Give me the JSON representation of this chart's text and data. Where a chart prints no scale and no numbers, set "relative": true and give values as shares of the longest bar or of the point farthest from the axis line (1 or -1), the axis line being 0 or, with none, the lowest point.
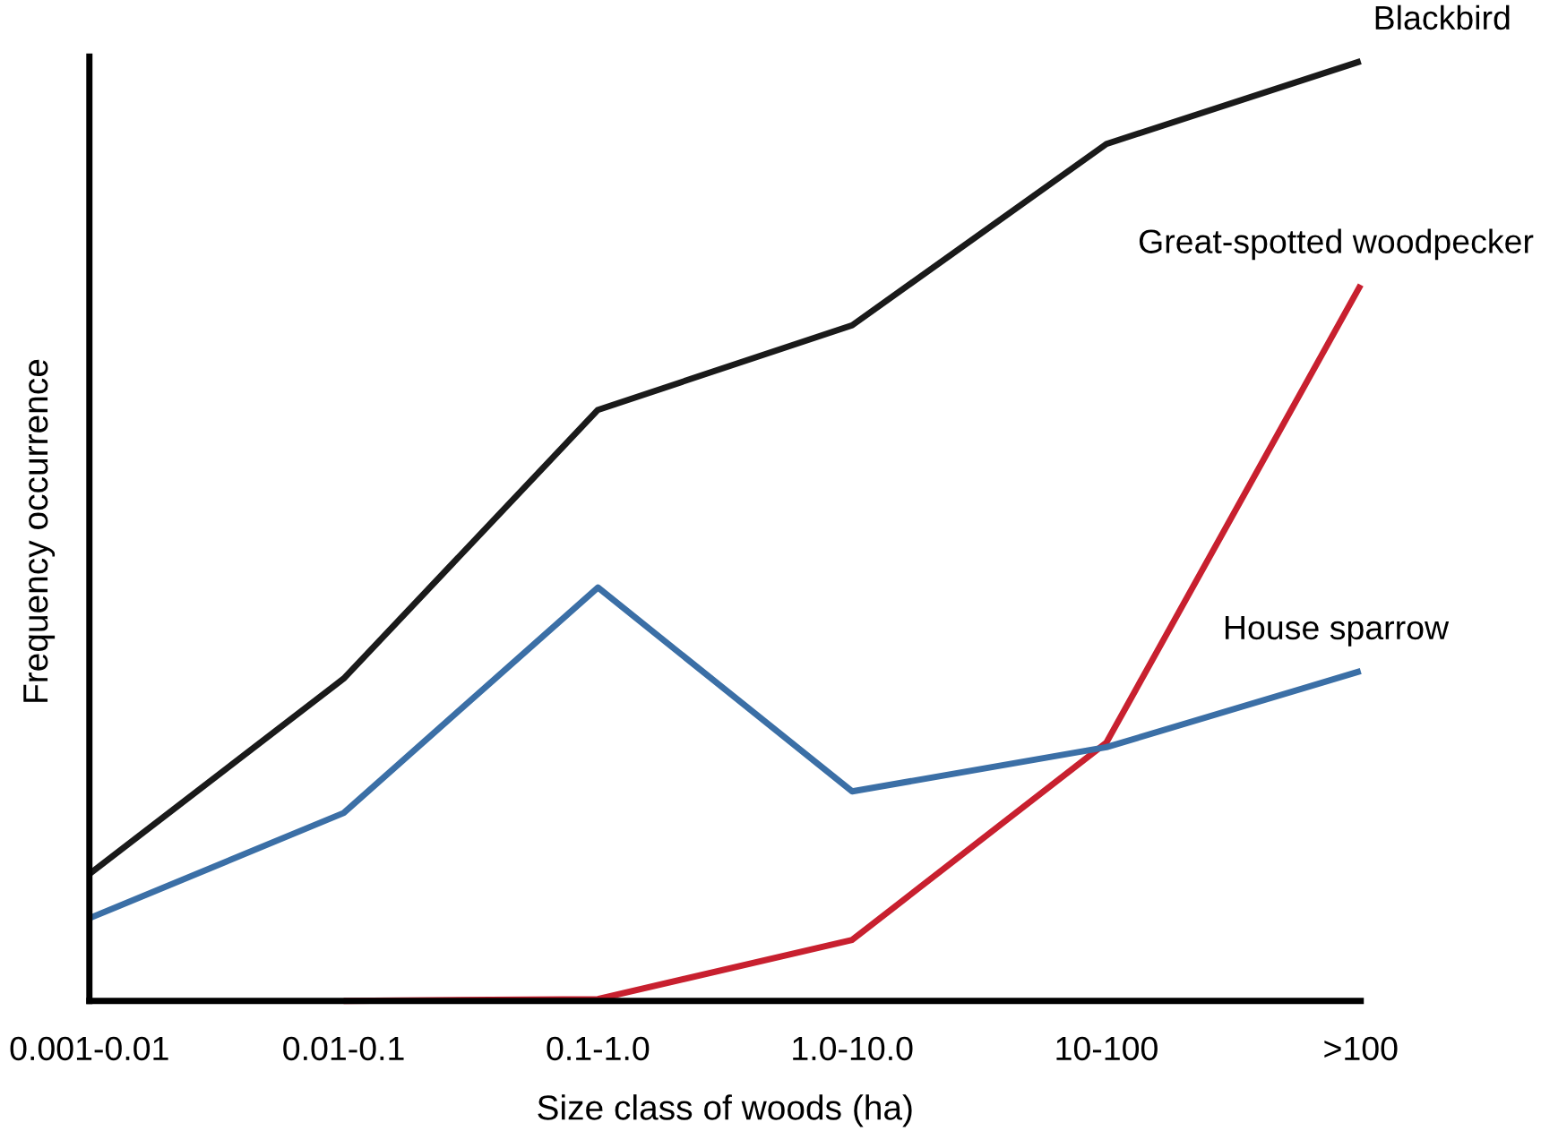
{
  "chart_data": {
    "type": "line",
    "relative": true,
    "xlabel": "Size class of woods (ha)",
    "ylabel": "Frequency occurrence",
    "categories": [
      "0.001-0.01",
      "0.01-0.1",
      "0.1-1.0",
      "1.0-10.0",
      "10-100",
      ">100"
    ],
    "series": [
      {
        "name": "Blackbird",
        "color": "#1a1a1a",
        "values": [
          0.135,
          0.343,
          0.629,
          0.719,
          0.912,
          1
        ]
      },
      {
        "name": "Great-spotted woodpecker",
        "color": "#c8202f",
        "values": [
          null,
          0,
          0.002,
          0.065,
          0.275,
          0.762
        ]
      },
      {
        "name": "House sparrow",
        "color": "#3b6fa6",
        "values": [
          0.088,
          0.2,
          0.44,
          0.223,
          0.27,
          0.351
        ]
      }
    ],
    "grid": false,
    "legend": false,
    "marker": "none",
    "line_style": "solid"
  }
}
